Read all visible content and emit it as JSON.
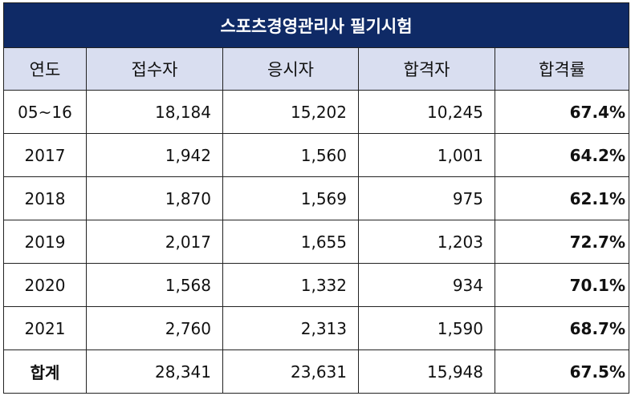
{
  "table": {
    "title": "스포츠경영관리사 필기시험",
    "headers": [
      "연도",
      "접수자",
      "응시자",
      "합격자",
      "합격률"
    ],
    "rows": [
      {
        "year": "05~16",
        "applicants": "18,184",
        "examinees": "15,202",
        "passers": "10,245",
        "rate": "67.4%"
      },
      {
        "year": "2017",
        "applicants": "1,942",
        "examinees": "1,560",
        "passers": "1,001",
        "rate": "64.2%"
      },
      {
        "year": "2018",
        "applicants": "1,870",
        "examinees": "1,569",
        "passers": "975",
        "rate": "62.1%"
      },
      {
        "year": "2019",
        "applicants": "2,017",
        "examinees": "1,655",
        "passers": "1,203",
        "rate": "72.7%"
      },
      {
        "year": "2020",
        "applicants": "1,568",
        "examinees": "1,332",
        "passers": "934",
        "rate": "70.1%"
      },
      {
        "year": "2021",
        "applicants": "2,760",
        "examinees": "2,313",
        "passers": "1,590",
        "rate": "68.7%"
      }
    ],
    "total": {
      "label": "합계",
      "applicants": "28,341",
      "examinees": "23,631",
      "passers": "15,948",
      "rate": "67.5%"
    }
  }
}
